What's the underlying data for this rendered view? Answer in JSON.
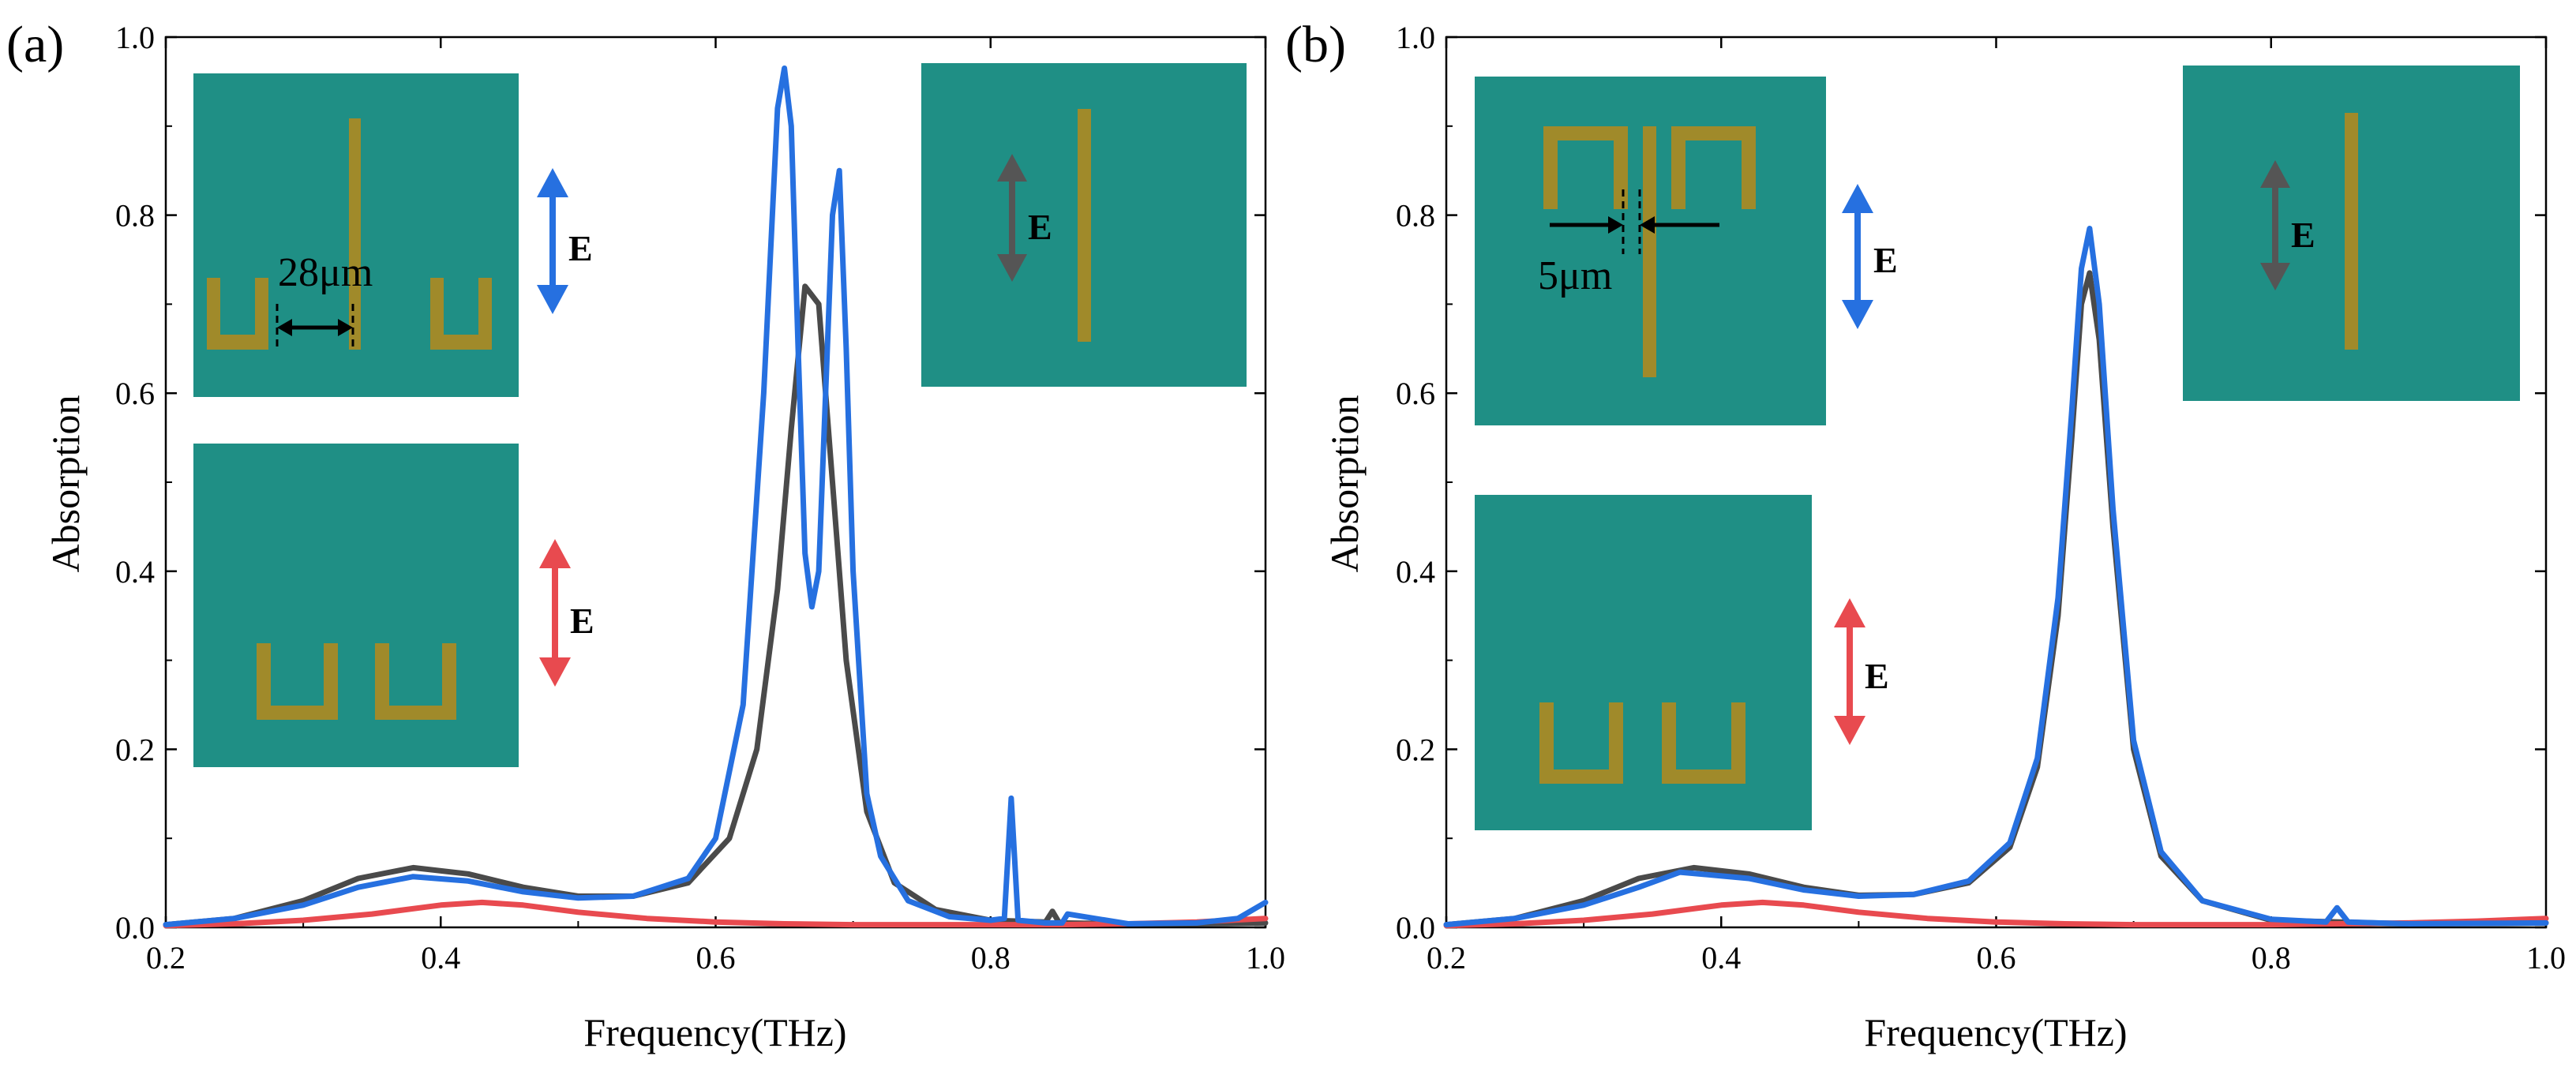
{
  "figure": {
    "colors": {
      "gray": "#4a4a4a",
      "blue": "#2670e0",
      "red": "#e84a4f",
      "substrate": "#1f8f85",
      "metal": "#a08a2a",
      "arrow_dark": "#555555",
      "arrow_blue": "#2670e0",
      "arrow_red": "#e84a4f"
    },
    "insets": {
      "a": {
        "field_label": "E",
        "dimension_label": "28μm"
      },
      "b": {
        "field_label": "E",
        "dimension_label": "5μm"
      }
    }
  },
  "chart_data": [
    {
      "type": "line",
      "panel_label": "(a)",
      "xlabel": "Frequency(THz)",
      "ylabel": "Absorption",
      "xlim": [
        0.2,
        1.0
      ],
      "ylim": [
        0.0,
        1.0
      ],
      "xticks": [
        "0.2",
        "0.4",
        "0.6",
        "0.8",
        "1.0"
      ],
      "yticks": [
        "0.0",
        "0.2",
        "0.4",
        "0.6",
        "0.8",
        "1.0"
      ],
      "grid": false,
      "legend": "none",
      "series": [
        {
          "color": "gray",
          "x": [
            0.2,
            0.25,
            0.3,
            0.34,
            0.38,
            0.42,
            0.46,
            0.5,
            0.54,
            0.58,
            0.61,
            0.63,
            0.645,
            0.655,
            0.665,
            0.675,
            0.685,
            0.695,
            0.71,
            0.73,
            0.76,
            0.8,
            0.84,
            0.845,
            0.85,
            0.9,
            0.95,
            1.0
          ],
          "y": [
            0.003,
            0.01,
            0.03,
            0.055,
            0.067,
            0.06,
            0.045,
            0.035,
            0.035,
            0.05,
            0.1,
            0.2,
            0.38,
            0.56,
            0.72,
            0.7,
            0.5,
            0.3,
            0.13,
            0.05,
            0.02,
            0.008,
            0.006,
            0.018,
            0.005,
            0.004,
            0.004,
            0.005
          ]
        },
        {
          "color": "blue",
          "x": [
            0.2,
            0.25,
            0.3,
            0.34,
            0.38,
            0.42,
            0.46,
            0.5,
            0.54,
            0.58,
            0.6,
            0.62,
            0.635,
            0.645,
            0.65,
            0.655,
            0.66,
            0.665,
            0.67,
            0.675,
            0.68,
            0.685,
            0.69,
            0.695,
            0.7,
            0.71,
            0.72,
            0.74,
            0.77,
            0.8,
            0.81,
            0.815,
            0.82,
            0.84,
            0.852,
            0.856,
            0.9,
            0.95,
            0.98,
            1.0
          ],
          "y": [
            0.003,
            0.01,
            0.025,
            0.045,
            0.057,
            0.052,
            0.04,
            0.033,
            0.035,
            0.055,
            0.1,
            0.25,
            0.6,
            0.92,
            0.965,
            0.9,
            0.65,
            0.42,
            0.36,
            0.4,
            0.6,
            0.8,
            0.85,
            0.65,
            0.4,
            0.15,
            0.08,
            0.03,
            0.012,
            0.008,
            0.01,
            0.145,
            0.008,
            0.005,
            0.005,
            0.015,
            0.004,
            0.005,
            0.01,
            0.028
          ]
        },
        {
          "color": "red",
          "x": [
            0.2,
            0.25,
            0.3,
            0.35,
            0.4,
            0.43,
            0.46,
            0.5,
            0.55,
            0.6,
            0.65,
            0.7,
            0.75,
            0.8,
            0.85,
            0.9,
            0.95,
            1.0
          ],
          "y": [
            0.002,
            0.004,
            0.008,
            0.015,
            0.025,
            0.028,
            0.025,
            0.017,
            0.01,
            0.006,
            0.004,
            0.003,
            0.003,
            0.003,
            0.003,
            0.004,
            0.006,
            0.01
          ]
        }
      ]
    },
    {
      "type": "line",
      "panel_label": "(b)",
      "xlabel": "Frequency(THz)",
      "ylabel": "Absorption",
      "xlim": [
        0.2,
        1.0
      ],
      "ylim": [
        0.0,
        1.0
      ],
      "xticks": [
        "0.2",
        "0.4",
        "0.6",
        "0.8",
        "1.0"
      ],
      "yticks": [
        "0.0",
        "0.2",
        "0.4",
        "0.6",
        "0.8",
        "1.0"
      ],
      "grid": false,
      "legend": "none",
      "series": [
        {
          "color": "gray",
          "x": [
            0.2,
            0.25,
            0.3,
            0.34,
            0.38,
            0.42,
            0.46,
            0.5,
            0.54,
            0.58,
            0.61,
            0.63,
            0.645,
            0.655,
            0.662,
            0.668,
            0.675,
            0.685,
            0.7,
            0.72,
            0.75,
            0.8,
            0.9,
            1.0
          ],
          "y": [
            0.003,
            0.01,
            0.03,
            0.055,
            0.067,
            0.06,
            0.045,
            0.036,
            0.037,
            0.05,
            0.09,
            0.18,
            0.35,
            0.55,
            0.7,
            0.735,
            0.66,
            0.45,
            0.2,
            0.08,
            0.03,
            0.008,
            0.004,
            0.005
          ]
        },
        {
          "color": "blue",
          "x": [
            0.2,
            0.25,
            0.3,
            0.34,
            0.37,
            0.42,
            0.46,
            0.5,
            0.54,
            0.58,
            0.61,
            0.63,
            0.645,
            0.655,
            0.662,
            0.668,
            0.675,
            0.685,
            0.7,
            0.72,
            0.75,
            0.8,
            0.84,
            0.848,
            0.856,
            0.9,
            1.0
          ],
          "y": [
            0.003,
            0.01,
            0.025,
            0.045,
            0.062,
            0.055,
            0.042,
            0.035,
            0.037,
            0.052,
            0.095,
            0.19,
            0.37,
            0.58,
            0.74,
            0.785,
            0.7,
            0.47,
            0.21,
            0.085,
            0.03,
            0.009,
            0.006,
            0.022,
            0.006,
            0.004,
            0.005
          ]
        },
        {
          "color": "red",
          "x": [
            0.2,
            0.25,
            0.3,
            0.35,
            0.4,
            0.43,
            0.46,
            0.5,
            0.55,
            0.6,
            0.65,
            0.7,
            0.75,
            0.8,
            0.85,
            0.9,
            0.95,
            1.0
          ],
          "y": [
            0.002,
            0.004,
            0.008,
            0.015,
            0.025,
            0.028,
            0.025,
            0.017,
            0.01,
            0.006,
            0.004,
            0.003,
            0.003,
            0.003,
            0.004,
            0.005,
            0.007,
            0.01
          ]
        }
      ]
    }
  ]
}
